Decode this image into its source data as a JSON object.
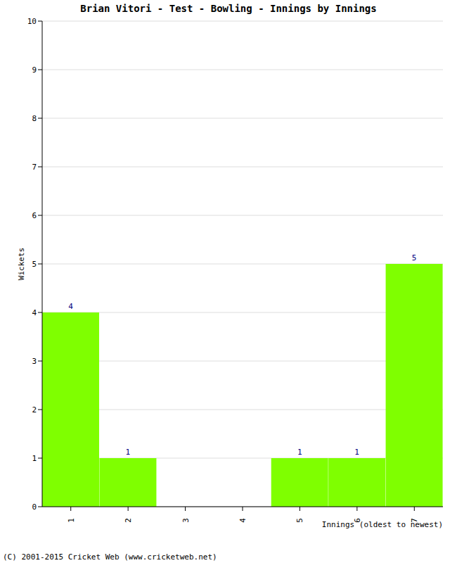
{
  "chart_data": {
    "type": "bar",
    "title": "Brian Vitori - Test - Bowling - Innings by Innings",
    "xlabel": "Innings (oldest to newest)",
    "ylabel": "Wickets",
    "annotations": [
      "(C) 2001-2015 Cricket Web (www.cricketweb.net)"
    ],
    "categories": [
      "1",
      "2",
      "3",
      "4",
      "5",
      "6",
      "7"
    ],
    "values": [
      4,
      1,
      0,
      0,
      1,
      1,
      5
    ],
    "color": "#7fff00",
    "ylim": [
      0,
      10
    ],
    "yticks": [
      0,
      1,
      2,
      3,
      4,
      5,
      6,
      7,
      8,
      9,
      10
    ],
    "grid": true,
    "data_labels": true
  }
}
